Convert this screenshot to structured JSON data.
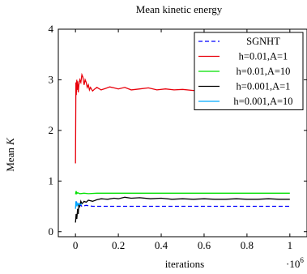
{
  "chart_data": {
    "type": "line",
    "title": "Mean kinetic energy",
    "xlabel": "iterations",
    "ylabel": "Mean ",
    "ylabel_symbol": "K",
    "x_multiplier_label": "·10",
    "x_multiplier_exponent": "6",
    "xlim": [
      -0.08,
      1.08
    ],
    "ylim": [
      -0.1,
      4.0
    ],
    "xticks": [
      0,
      0.2,
      0.4,
      0.6,
      0.8,
      1
    ],
    "xtick_labels": [
      "0",
      "0.2",
      "0.4",
      "0.6",
      "0.8",
      "1"
    ],
    "yticks": [
      0,
      1,
      2,
      3,
      4
    ],
    "ytick_labels": [
      "0",
      "1",
      "2",
      "3",
      "4"
    ],
    "grid": false,
    "legend_position": "top-right",
    "series": [
      {
        "name": "SGNHT",
        "color": "#0000ff",
        "dash": "dashed",
        "x": [
          0.0,
          0.005,
          0.01,
          0.02,
          0.03,
          0.05,
          0.08,
          0.1,
          0.2,
          0.4,
          0.6,
          0.8,
          1.0
        ],
        "y": [
          0.55,
          0.58,
          0.52,
          0.54,
          0.5,
          0.52,
          0.5,
          0.5,
          0.5,
          0.5,
          0.5,
          0.5,
          0.5
        ]
      },
      {
        "name": "h=0.01,A=1",
        "color": "#e8000b",
        "dash": "solid",
        "x": [
          0.0,
          0.002,
          0.004,
          0.006,
          0.008,
          0.01,
          0.013,
          0.016,
          0.02,
          0.025,
          0.03,
          0.035,
          0.04,
          0.045,
          0.05,
          0.055,
          0.06,
          0.065,
          0.07,
          0.08,
          0.09,
          0.1,
          0.12,
          0.14,
          0.16,
          0.18,
          0.2,
          0.23,
          0.26,
          0.3,
          0.34,
          0.38,
          0.42,
          0.46,
          0.5,
          0.55,
          0.6,
          0.65,
          0.7,
          0.75,
          0.8,
          0.85,
          0.9,
          0.95,
          1.0
        ],
        "y": [
          1.35,
          2.95,
          2.7,
          3.0,
          2.8,
          2.97,
          2.75,
          2.9,
          3.0,
          2.95,
          3.1,
          3.05,
          2.9,
          3.0,
          2.95,
          2.85,
          2.9,
          2.8,
          2.85,
          2.78,
          2.82,
          2.85,
          2.8,
          2.83,
          2.86,
          2.84,
          2.82,
          2.85,
          2.8,
          2.82,
          2.84,
          2.8,
          2.82,
          2.8,
          2.81,
          2.79,
          2.81,
          2.8,
          2.79,
          2.8,
          2.79,
          2.8,
          2.79,
          2.79,
          2.79
        ]
      },
      {
        "name": "h=0.01,A=10",
        "color": "#00e000",
        "dash": "solid",
        "x": [
          0.0,
          0.003,
          0.006,
          0.01,
          0.02,
          0.04,
          0.06,
          0.1,
          0.2,
          0.3,
          0.4,
          0.5,
          0.6,
          0.7,
          0.8,
          0.9,
          1.0
        ],
        "y": [
          0.74,
          0.8,
          0.75,
          0.77,
          0.75,
          0.76,
          0.75,
          0.76,
          0.76,
          0.76,
          0.76,
          0.76,
          0.76,
          0.76,
          0.76,
          0.76,
          0.76
        ]
      },
      {
        "name": "h=0.001,A=1",
        "color": "#000000",
        "dash": "solid",
        "x": [
          0.0,
          0.003,
          0.006,
          0.01,
          0.013,
          0.016,
          0.02,
          0.025,
          0.03,
          0.04,
          0.05,
          0.06,
          0.08,
          0.1,
          0.12,
          0.15,
          0.18,
          0.2,
          0.23,
          0.26,
          0.3,
          0.35,
          0.4,
          0.45,
          0.5,
          0.55,
          0.6,
          0.65,
          0.7,
          0.75,
          0.8,
          0.85,
          0.9,
          0.95,
          1.0
        ],
        "y": [
          0.18,
          0.35,
          0.25,
          0.45,
          0.35,
          0.55,
          0.5,
          0.6,
          0.55,
          0.6,
          0.58,
          0.62,
          0.6,
          0.63,
          0.65,
          0.64,
          0.66,
          0.65,
          0.68,
          0.66,
          0.67,
          0.65,
          0.66,
          0.64,
          0.65,
          0.64,
          0.65,
          0.64,
          0.64,
          0.65,
          0.64,
          0.64,
          0.65,
          0.64,
          0.64
        ]
      },
      {
        "name": "h=0.001,A=10",
        "color": "#00aaff",
        "dash": "solid",
        "x": [
          0.0,
          0.002,
          0.004,
          0.006,
          0.01,
          0.015,
          0.02,
          0.03
        ],
        "y": [
          0.45,
          0.6,
          0.5,
          0.58,
          0.52,
          0.56,
          0.53,
          0.55
        ]
      }
    ]
  }
}
